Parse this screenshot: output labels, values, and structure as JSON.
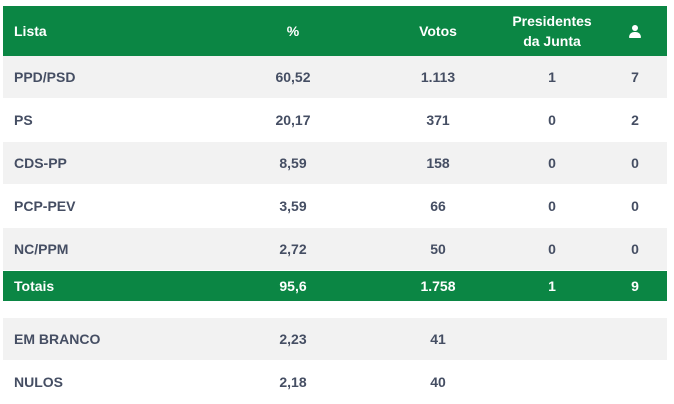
{
  "header": {
    "lista": "Lista",
    "pct": "%",
    "votos": "Votos",
    "presidentes_line1": "Presidentes",
    "presidentes_line2": "da Junta",
    "mandates_icon": "user-icon"
  },
  "rows": [
    {
      "lista": "PPD/PSD",
      "pct": "60,52",
      "votos": "1.113",
      "pres": "1",
      "mandatos": "7"
    },
    {
      "lista": "PS",
      "pct": "20,17",
      "votos": "371",
      "pres": "0",
      "mandatos": "2"
    },
    {
      "lista": "CDS-PP",
      "pct": "8,59",
      "votos": "158",
      "pres": "0",
      "mandatos": "0"
    },
    {
      "lista": "PCP-PEV",
      "pct": "3,59",
      "votos": "66",
      "pres": "0",
      "mandatos": "0"
    },
    {
      "lista": "NC/PPM",
      "pct": "2,72",
      "votos": "50",
      "pres": "0",
      "mandatos": "0"
    }
  ],
  "totals": {
    "lista": "Totais",
    "pct": "95,6",
    "votos": "1.758",
    "pres": "1",
    "mandatos": "9"
  },
  "extra": [
    {
      "lista": "EM BRANCO",
      "pct": "2,23",
      "votos": "41"
    },
    {
      "lista": "NULOS",
      "pct": "2,18",
      "votos": "40"
    }
  ],
  "colors": {
    "green": "#0b8644",
    "text": "#454e63",
    "stripe": "#f2f2f2"
  }
}
